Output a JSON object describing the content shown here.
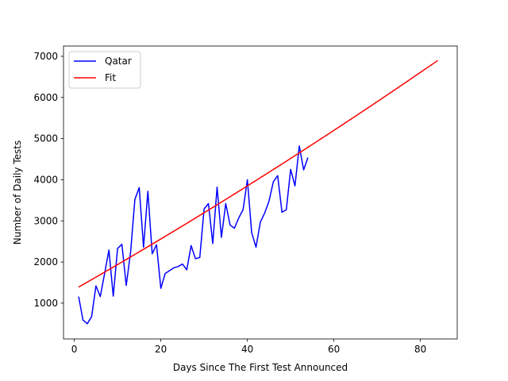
{
  "chart_data": {
    "type": "line",
    "title": "",
    "xlabel": "Days Since The First Test Announced",
    "ylabel": "Number of Daily Tests",
    "xlim": [
      -2.5,
      88.5
    ],
    "ylim": [
      130,
      7250
    ],
    "xticks": [
      0,
      20,
      40,
      60,
      80
    ],
    "yticks": [
      1000,
      2000,
      3000,
      4000,
      5000,
      6000,
      7000
    ],
    "grid": false,
    "legend_position": "upper-left",
    "series": [
      {
        "name": "Qatar",
        "color": "#0000ff",
        "x": [
          1,
          2,
          3,
          4,
          5,
          6,
          7,
          8,
          9,
          10,
          11,
          12,
          13,
          14,
          15,
          16,
          17,
          18,
          19,
          20,
          21,
          22,
          23,
          24,
          25,
          26,
          27,
          28,
          29,
          30,
          31,
          32,
          33,
          34,
          35,
          36,
          37,
          38,
          39,
          40,
          41,
          42,
          43,
          44,
          45,
          46,
          47,
          48,
          49,
          50,
          51,
          52,
          53,
          54
        ],
        "y": [
          1160,
          590,
          500,
          670,
          1420,
          1160,
          1720,
          2290,
          1170,
          2330,
          2430,
          1430,
          2230,
          3520,
          3810,
          2360,
          3720,
          2200,
          2420,
          1360,
          1720,
          1790,
          1860,
          1890,
          1950,
          1810,
          2400,
          2080,
          2110,
          3290,
          3420,
          2450,
          3820,
          2600,
          3420,
          2900,
          2820,
          3070,
          3270,
          4000,
          2710,
          2360,
          2970,
          3190,
          3480,
          3950,
          4100,
          3210,
          3270,
          4250,
          3850,
          4820,
          4240,
          4540
        ]
      },
      {
        "name": "Fit",
        "color": "#ff0000",
        "fit": {
          "a": 1330,
          "b": 60,
          "c": 0.075,
          "x_min": 1,
          "x_max": 84
        }
      }
    ]
  }
}
